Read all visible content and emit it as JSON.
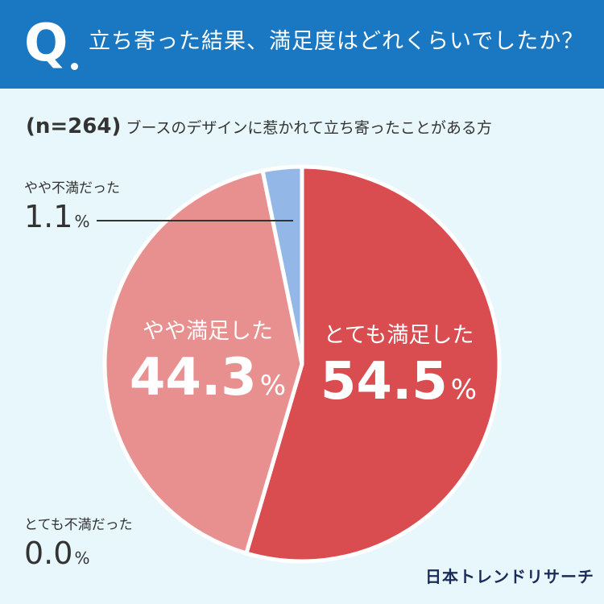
{
  "header": {
    "q_mark": "Q",
    "question": "立ち寄った結果、満足度はどれくらいでしたか？"
  },
  "note": {
    "sample": "(n=264)",
    "respondents": "ブースのデザインに惹かれて立ち寄ったことがある方"
  },
  "colors": {
    "header_bg": "#1a78c2",
    "background": "#e8f7fb",
    "very_satisfied": "#d94c50",
    "somewhat_satisfied": "#e89090",
    "somewhat_unsatisfied": "#93b8e8",
    "very_unsatisfied": "#5a7fc0"
  },
  "chart_data": {
    "type": "pie",
    "start": "top, clockwise",
    "categories": [
      "とても満足した",
      "やや満足した",
      "やや不満だった",
      "とても不満だった"
    ],
    "values": [
      54.5,
      44.3,
      1.1,
      0.0
    ],
    "unit": "%"
  },
  "labels": {
    "very_satisfied": {
      "name": "とても満足した",
      "value": "54.5",
      "unit": "%"
    },
    "somewhat_satisfied": {
      "name": "やや満足した",
      "value": "44.3",
      "unit": "%"
    },
    "somewhat_unsatisfied": {
      "name": "やや不満だった",
      "value": "1.1",
      "unit": "%"
    },
    "very_unsatisfied": {
      "name": "とても不満だった",
      "value": "0.0",
      "unit": "%"
    }
  },
  "logo": "日本トレンドリサーチ"
}
